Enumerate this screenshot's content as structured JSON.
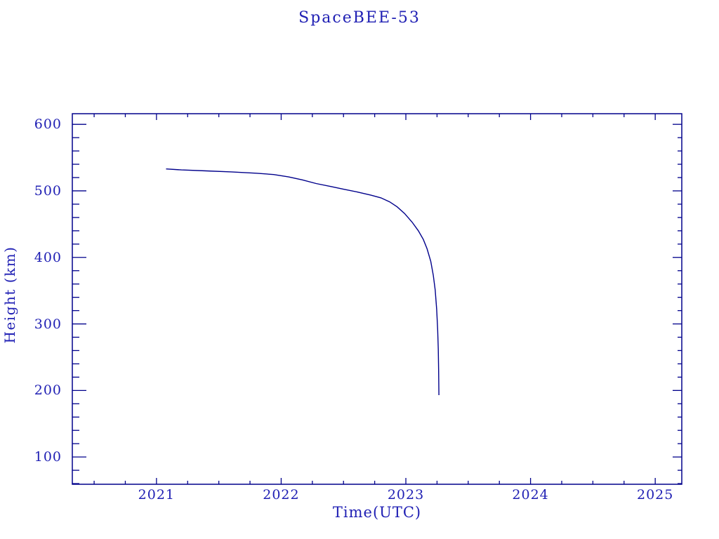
{
  "chart_data": {
    "type": "line",
    "title": "SpaceBEE-53",
    "xlabel": "Time(UTC)",
    "ylabel": "Height (km)",
    "xlim": [
      2020.325,
      2025.213
    ],
    "ylim": [
      59,
      616
    ],
    "grid": false,
    "legend": null,
    "background_color": "#ffffff",
    "line_color": "#00008b",
    "axis_color": "#00008b",
    "text_color": "#2020b4",
    "x_ticks": [
      {
        "value": 2021,
        "label": "2021"
      },
      {
        "value": 2022,
        "label": "2022"
      },
      {
        "value": 2023,
        "label": "2023"
      },
      {
        "value": 2024,
        "label": "2024"
      },
      {
        "value": 2025,
        "label": "2025"
      }
    ],
    "x_minor_tick_step": 0.25,
    "y_ticks": [
      {
        "value": 100,
        "label": "100"
      },
      {
        "value": 200,
        "label": "200"
      },
      {
        "value": 300,
        "label": "300"
      },
      {
        "value": 400,
        "label": "400"
      },
      {
        "value": 500,
        "label": "500"
      },
      {
        "value": 600,
        "label": "600"
      }
    ],
    "y_minor_tick_step": 20,
    "series": [
      {
        "name": "SpaceBEE-53",
        "points": [
          [
            2021.077,
            533
          ],
          [
            2021.2,
            531.5
          ],
          [
            2021.4,
            530
          ],
          [
            2021.6,
            528.5
          ],
          [
            2021.8,
            526.5
          ],
          [
            2021.94,
            524.5
          ],
          [
            2022.06,
            521
          ],
          [
            2022.17,
            516.5
          ],
          [
            2022.28,
            511
          ],
          [
            2022.4,
            506.5
          ],
          [
            2022.5,
            502.5
          ],
          [
            2022.62,
            498
          ],
          [
            2022.72,
            493.5
          ],
          [
            2022.8,
            489.5
          ],
          [
            2022.87,
            483.5
          ],
          [
            2022.93,
            476
          ],
          [
            2022.99,
            466
          ],
          [
            2023.05,
            453
          ],
          [
            2023.1,
            440
          ],
          [
            2023.14,
            427
          ],
          [
            2023.17,
            413
          ],
          [
            2023.2,
            394
          ],
          [
            2023.22,
            373
          ],
          [
            2023.235,
            351
          ],
          [
            2023.247,
            322
          ],
          [
            2023.255,
            292
          ],
          [
            2023.26,
            262
          ],
          [
            2023.263,
            230
          ],
          [
            2023.265,
            193
          ]
        ]
      }
    ]
  }
}
